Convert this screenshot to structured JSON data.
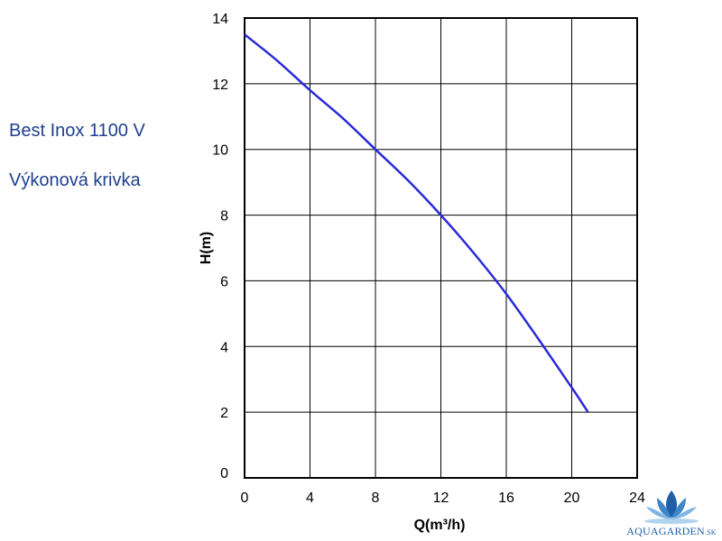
{
  "side_text": {
    "product": "Best Inox 1100 V",
    "curve": "Výkonová krivka"
  },
  "logo": {
    "name": "AQUAGARDEN",
    "suffix": ".SK",
    "colors": [
      "#1f5fa8",
      "#3f86c9",
      "#7fb6e3"
    ]
  },
  "colors": {
    "curve": "#2a2ad8",
    "grid": "#000000",
    "side_text": "#1f3f8f"
  },
  "chart_data": {
    "type": "line",
    "xlabel": "Q(m³/h)",
    "ylabel": "H(m)",
    "xlim": [
      0,
      24
    ],
    "ylim": [
      0,
      14
    ],
    "xticks": [
      0,
      4,
      8,
      12,
      16,
      20,
      24
    ],
    "yticks": [
      0,
      2,
      4,
      6,
      8,
      10,
      12,
      14
    ],
    "grid": true,
    "series": [
      {
        "x": [
          0,
          2,
          4,
          6,
          8,
          10,
          12,
          14,
          16,
          18,
          20,
          21
        ],
        "y": [
          13.5,
          12.7,
          11.8,
          10.95,
          10.0,
          9.05,
          8.0,
          6.85,
          5.6,
          4.2,
          2.75,
          2.0
        ]
      }
    ]
  }
}
